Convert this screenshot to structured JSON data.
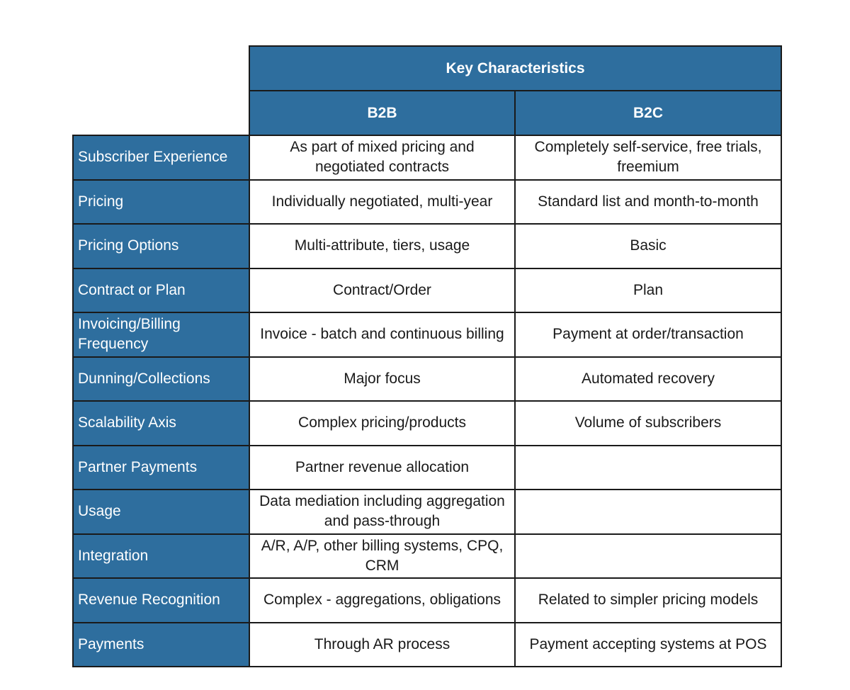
{
  "table": {
    "group_header": "Key Characteristics",
    "columns": [
      "B2B",
      "B2C"
    ],
    "rows": [
      {
        "label": "Subscriber Experience",
        "b2b": "As part of mixed pricing and negotiated contracts",
        "b2c": "Completely self-service, free trials, freemium"
      },
      {
        "label": "Pricing",
        "b2b": "Individually negotiated, multi-year",
        "b2c": "Standard list and month-to-month"
      },
      {
        "label": "Pricing Options",
        "b2b": "Multi-attribute, tiers, usage",
        "b2c": "Basic"
      },
      {
        "label": "Contract or Plan",
        "b2b": "Contract/Order",
        "b2c": "Plan"
      },
      {
        "label": "Invoicing/Billing Frequency",
        "b2b": "Invoice - batch and continuous billing",
        "b2c": "Payment at order/transaction"
      },
      {
        "label": "Dunning/Collections",
        "b2b": "Major focus",
        "b2c": "Automated recovery"
      },
      {
        "label": "Scalability Axis",
        "b2b": "Complex pricing/products",
        "b2c": "Volume of subscribers"
      },
      {
        "label": "Partner Payments",
        "b2b": "Partner revenue allocation",
        "b2c": ""
      },
      {
        "label": "Usage",
        "b2b": "Data mediation including aggregation and pass-through",
        "b2c": ""
      },
      {
        "label": "Integration",
        "b2b": "A/R, A/P, other billing systems, CPQ, CRM",
        "b2c": ""
      },
      {
        "label": "Revenue Recognition",
        "b2b": "Complex - aggregations, obligations",
        "b2c": "Related to simpler pricing models"
      },
      {
        "label": "Payments",
        "b2b": "Through AR process",
        "b2c": "Payment accepting systems at POS"
      }
    ]
  },
  "colors": {
    "header_bg": "#2e6e9e",
    "header_text": "#ffffff",
    "border": "#1a1a1a"
  }
}
